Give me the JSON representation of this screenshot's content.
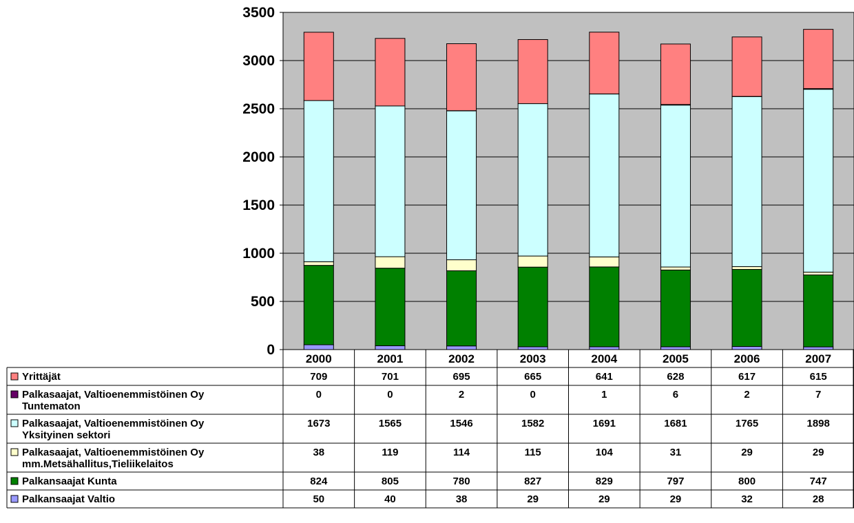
{
  "chart_data": {
    "type": "bar",
    "stacked": true,
    "categories": [
      "2000",
      "2001",
      "2002",
      "2003",
      "2004",
      "2005",
      "2006",
      "2007"
    ],
    "ylim": [
      0,
      3500
    ],
    "yticks": [
      "0",
      "500",
      "1000",
      "1500",
      "2000",
      "2500",
      "3000",
      "3500"
    ],
    "ytick_values": [
      0,
      500,
      1000,
      1500,
      2000,
      2500,
      3000,
      3500
    ],
    "grid": true,
    "legend": "data table below the chart",
    "series": [
      {
        "label_lines": [
          "Palkansaajat Valtio"
        ],
        "color": "#9999ff",
        "values": [
          50,
          40,
          38,
          29,
          29,
          29,
          32,
          28
        ]
      },
      {
        "label_lines": [
          "Palkansaajat Kunta"
        ],
        "color": "#008000",
        "values": [
          824,
          805,
          780,
          827,
          829,
          797,
          800,
          747
        ]
      },
      {
        "label_lines": [
          "Palkasaajat, Valtioenemmistöinen Oy",
          "mm.Metsähallitus,Tieliikelaitos"
        ],
        "color": "#ffffcc",
        "values": [
          38,
          119,
          114,
          115,
          104,
          31,
          29,
          29
        ]
      },
      {
        "label_lines": [
          "Palkasaajat, Valtioenemmistöinen Oy",
          "Yksityinen sektori"
        ],
        "color": "#ccffff",
        "values": [
          1673,
          1565,
          1546,
          1582,
          1691,
          1681,
          1765,
          1898
        ]
      },
      {
        "label_lines": [
          "Palkasaajat, Valtioenemmistöinen Oy",
          "Tuntematon"
        ],
        "color": "#660066",
        "values": [
          0,
          0,
          2,
          0,
          1,
          6,
          2,
          7
        ]
      },
      {
        "label_lines": [
          "Yrittäjät"
        ],
        "color": "#ff8080",
        "values": [
          709,
          701,
          695,
          665,
          641,
          628,
          617,
          615
        ]
      }
    ]
  },
  "colors": {
    "plot_background": "#c0c0c0",
    "gridline": "#000000"
  }
}
